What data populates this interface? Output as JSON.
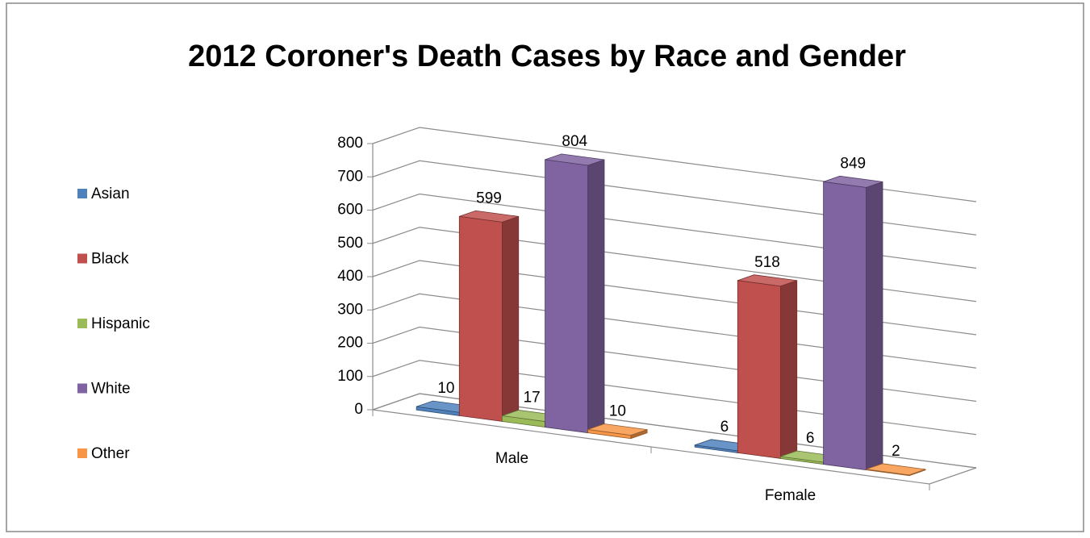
{
  "chart_data": {
    "type": "bar3d",
    "title": "2012 Coroner's Death Cases by Race and Gender",
    "categories": [
      "Male",
      "Female"
    ],
    "series": [
      {
        "name": "Asian",
        "color": "#4f81bd",
        "values": [
          10,
          6
        ]
      },
      {
        "name": "Black",
        "color": "#c0504d",
        "values": [
          599,
          518
        ]
      },
      {
        "name": "Hispanic",
        "color": "#9bbb59",
        "values": [
          17,
          6
        ]
      },
      {
        "name": "White",
        "color": "#8064a2",
        "values": [
          804,
          849
        ]
      },
      {
        "name": "Other",
        "color": "#f79646",
        "values": [
          10,
          2
        ]
      }
    ],
    "ylim": [
      0,
      800
    ],
    "yticks": [
      0,
      100,
      200,
      300,
      400,
      500,
      600,
      700,
      800
    ],
    "grid": true,
    "legend": "left"
  }
}
